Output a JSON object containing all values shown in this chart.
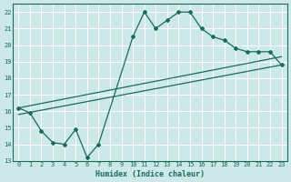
{
  "xlabel": "Humidex (Indice chaleur)",
  "xlim": [
    -0.5,
    23.5
  ],
  "ylim": [
    13,
    22.5
  ],
  "xticks": [
    0,
    1,
    2,
    3,
    4,
    5,
    6,
    7,
    8,
    9,
    10,
    11,
    12,
    13,
    14,
    15,
    16,
    17,
    18,
    19,
    20,
    21,
    22,
    23
  ],
  "yticks": [
    13,
    14,
    15,
    16,
    17,
    18,
    19,
    20,
    21,
    22
  ],
  "bg_color": "#cce8e8",
  "line_color": "#1a6b5a",
  "grid_color": "#b0d8d8",
  "line1_x": [
    0,
    1,
    2,
    3,
    4,
    5,
    6,
    7,
    10,
    11,
    12,
    13,
    14,
    15,
    16,
    17,
    18,
    19,
    20,
    21,
    22,
    23
  ],
  "line1_y": [
    16.2,
    15.9,
    14.8,
    14.1,
    14.0,
    14.9,
    13.2,
    14.0,
    20.5,
    22.0,
    21.0,
    21.5,
    22.0,
    22.0,
    21.0,
    20.5,
    20.3,
    19.8,
    19.6,
    19.6,
    19.6,
    18.8
  ],
  "line2_x": [
    0,
    23
  ],
  "line2_y": [
    15.8,
    18.8
  ],
  "line3_x": [
    0,
    23
  ],
  "line3_y": [
    16.2,
    19.3
  ]
}
